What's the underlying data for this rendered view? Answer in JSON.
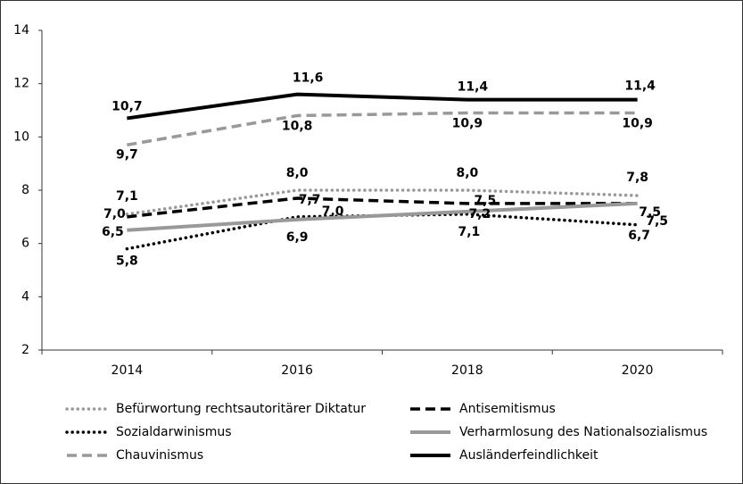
{
  "chart_data": {
    "type": "line",
    "categories": [
      "2014",
      "2016",
      "2018",
      "2020"
    ],
    "ylim": [
      2,
      14
    ],
    "yticks": [
      2,
      4,
      6,
      8,
      10,
      12,
      14
    ],
    "series": [
      {
        "name": "Befürwortung rechtsautoritärer Diktatur",
        "color": "#999999",
        "style": "dotted",
        "values": [
          7.1,
          8.0,
          8.0,
          7.8
        ],
        "value_labels": [
          "7,1",
          "8,0",
          "8,0",
          "7,8"
        ]
      },
      {
        "name": "Antisemitismus",
        "color": "#000000",
        "style": "dashed",
        "values": [
          7.0,
          7.7,
          7.5,
          7.5
        ],
        "value_labels": [
          "7,0",
          "7,7",
          "7,5",
          "7,5"
        ]
      },
      {
        "name": "Sozialdarwinismus",
        "color": "#000000",
        "style": "dotted",
        "values": [
          5.8,
          7.0,
          7.1,
          6.7
        ],
        "value_labels": [
          "5,8",
          "7,0",
          "7,1",
          "6,7"
        ]
      },
      {
        "name": "Verharmlosung des Nationalsozialismus",
        "color": "#999999",
        "style": "solid",
        "values": [
          6.5,
          6.9,
          7.2,
          7.5
        ],
        "value_labels": [
          "6,5",
          "6,9",
          "7,2",
          "7,5"
        ]
      },
      {
        "name": "Chauvinismus",
        "color": "#999999",
        "style": "dashed",
        "values": [
          9.7,
          10.8,
          10.9,
          10.9
        ],
        "value_labels": [
          "9,7",
          "10,8",
          "10,9",
          "10,9"
        ]
      },
      {
        "name": "Ausländerfeindlichkeit",
        "color": "#000000",
        "style": "solid",
        "values": [
          10.7,
          11.6,
          11.4,
          11.4
        ],
        "value_labels": [
          "10,7",
          "11,6",
          "11,4",
          "11,4"
        ]
      }
    ]
  }
}
